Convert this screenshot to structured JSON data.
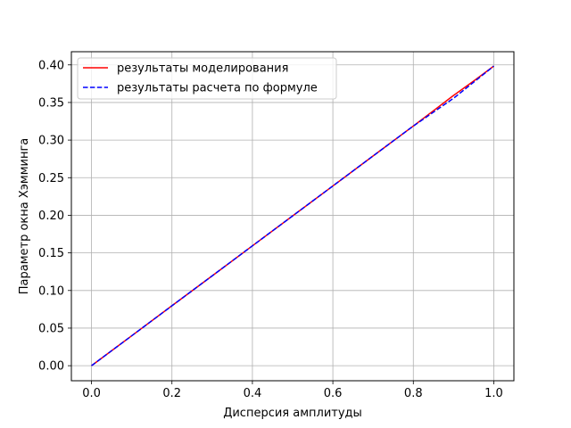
{
  "chart_data": {
    "type": "line",
    "xlabel": "Дисперсия амплитуды",
    "ylabel": "Параметр окна Хэмминга",
    "xlim": [
      -0.05,
      1.05
    ],
    "ylim": [
      -0.02,
      0.4175
    ],
    "xticks": [
      0.0,
      0.2,
      0.4,
      0.6,
      0.8,
      1.0
    ],
    "xtick_labels": [
      "0.0",
      "0.2",
      "0.4",
      "0.6",
      "0.8",
      "1.0"
    ],
    "yticks": [
      0.0,
      0.05,
      0.1,
      0.15,
      0.2,
      0.25,
      0.3,
      0.35,
      0.4
    ],
    "ytick_labels": [
      "0.00",
      "0.05",
      "0.10",
      "0.15",
      "0.20",
      "0.25",
      "0.30",
      "0.35",
      "0.40"
    ],
    "grid": true,
    "legend_position": "top-left",
    "series": [
      {
        "name": "результаты моделирования",
        "color": "#ff0000",
        "style": "solid",
        "x": [
          0.0,
          0.1,
          0.2,
          0.3,
          0.4,
          0.5,
          0.6,
          0.7,
          0.8,
          0.85,
          0.9,
          0.95,
          1.0
        ],
        "y": [
          0.0,
          0.0398,
          0.0797,
          0.1195,
          0.1594,
          0.1992,
          0.239,
          0.2789,
          0.3187,
          0.339,
          0.3594,
          0.3785,
          0.3984
        ]
      },
      {
        "name": "результаты расчета по формуле",
        "color": "#0000ff",
        "style": "dashed",
        "x": [
          0.0,
          0.1,
          0.2,
          0.3,
          0.4,
          0.5,
          0.6,
          0.7,
          0.8,
          0.9,
          1.0
        ],
        "y": [
          0.0,
          0.0398,
          0.0797,
          0.1195,
          0.1594,
          0.1992,
          0.239,
          0.2789,
          0.3187,
          0.3556,
          0.3984
        ]
      }
    ]
  }
}
